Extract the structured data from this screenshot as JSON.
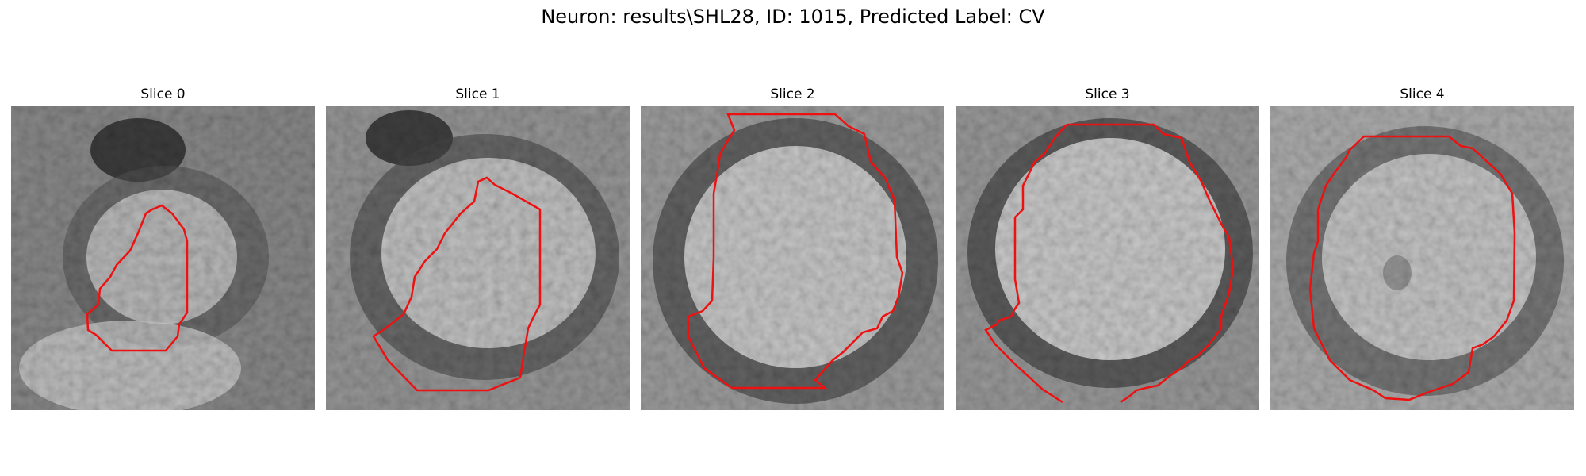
{
  "figure": {
    "title": "Neuron: results\\SHL28, ID: 1015, Predicted Label: CV"
  },
  "overlay_color": "#ee1111",
  "panels": [
    {
      "title": "Slice 0",
      "image_name": "em-slice-0",
      "contour_name": "segmentation-contour-0"
    },
    {
      "title": "Slice 1",
      "image_name": "em-slice-1",
      "contour_name": "segmentation-contour-1"
    },
    {
      "title": "Slice 2",
      "image_name": "em-slice-2",
      "contour_name": "segmentation-contour-2"
    },
    {
      "title": "Slice 3",
      "image_name": "em-slice-3",
      "contour_name": "segmentation-contour-3"
    },
    {
      "title": "Slice 4",
      "image_name": "em-slice-4",
      "contour_name": "segmentation-contour-4"
    }
  ]
}
